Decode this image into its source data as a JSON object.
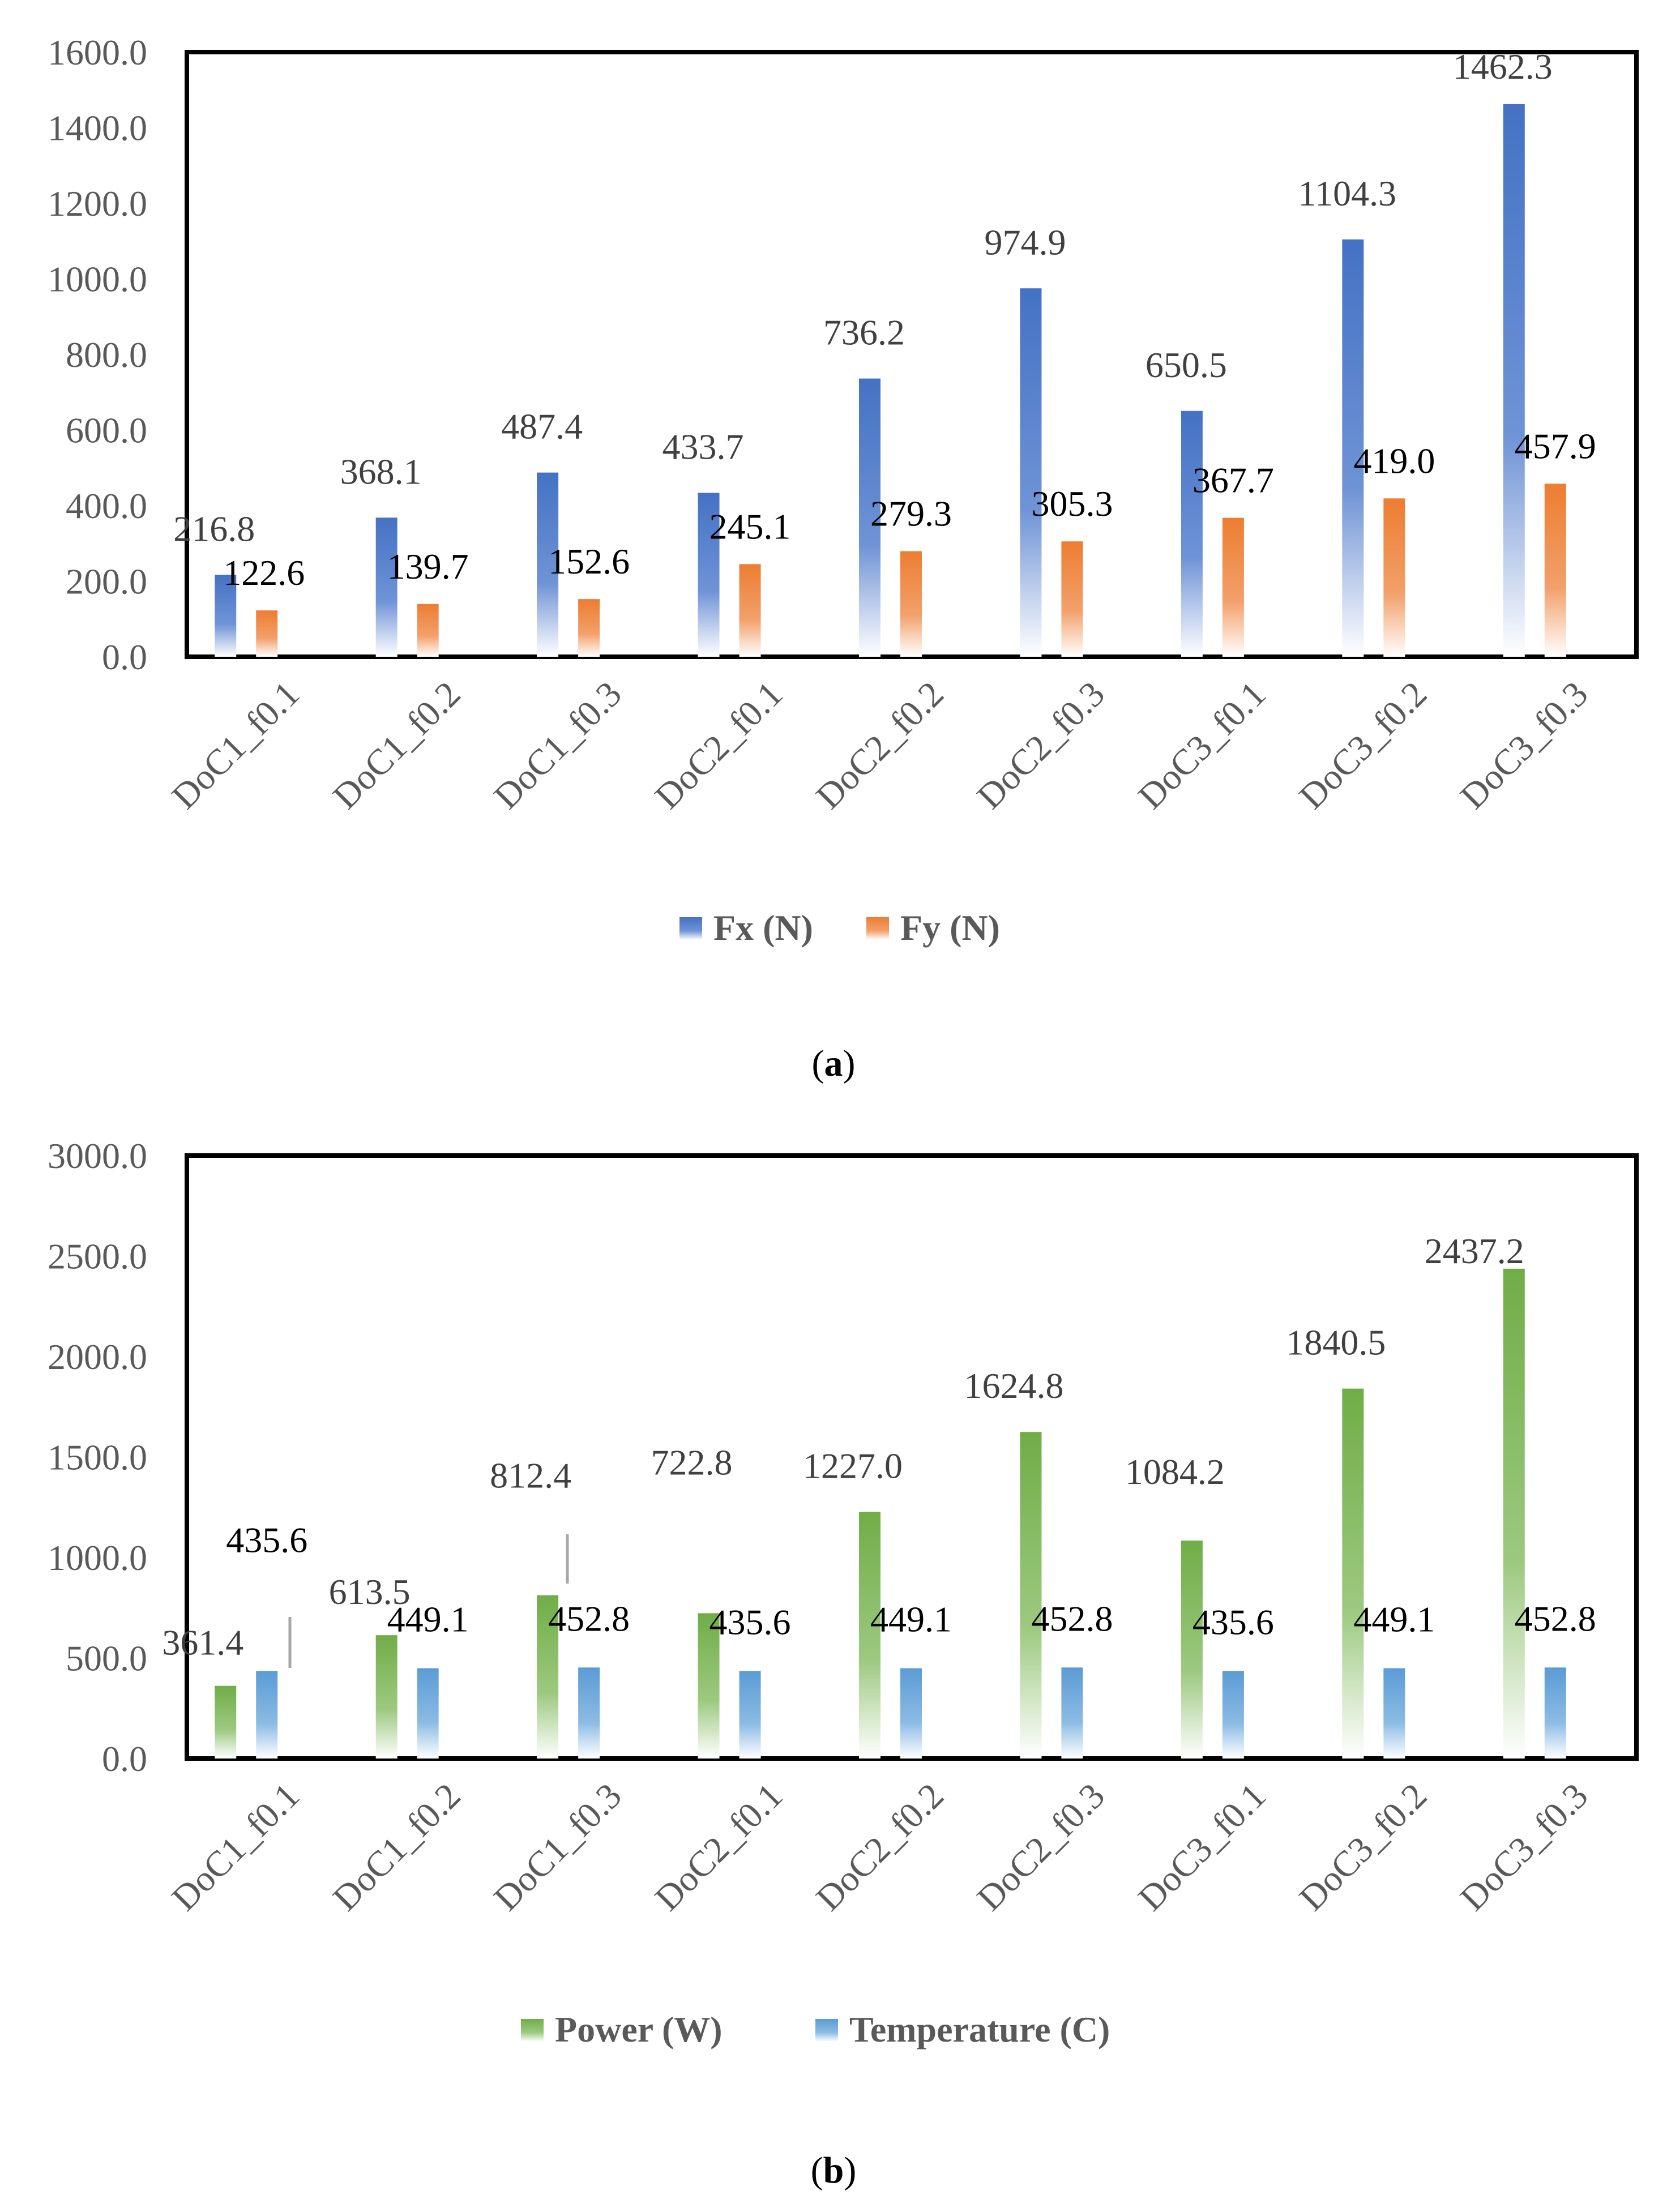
{
  "panels": [
    {
      "caption": "a",
      "chart_data": {
        "type": "bar",
        "categories": [
          "DoC1_f0.1",
          "DoC1_f0.2",
          "DoC1_f0.3",
          "DoC2_f0.1",
          "DoC2_f0.2",
          "DoC2_f0.3",
          "DoC3_f0.1",
          "DoC3_f0.2",
          "DoC3_f0.3"
        ],
        "series": [
          {
            "name": "Fx (N)",
            "color": "#4472c4",
            "values": [
              216.8,
              368.1,
              487.4,
              433.7,
              736.2,
              974.9,
              650.5,
              1104.3,
              1462.3
            ],
            "label_color": "#404040"
          },
          {
            "name": "Fy (N)",
            "color": "#ed7d31",
            "values": [
              122.6,
              139.7,
              152.6,
              245.1,
              279.3,
              305.3,
              367.7,
              419.0,
              457.9
            ],
            "label_color": "#000000"
          }
        ],
        "ylim": [
          0,
          1600
        ],
        "yticks": [
          "0.0",
          "200.0",
          "400.0",
          "600.0",
          "800.0",
          "1000.0",
          "1200.0",
          "1400.0",
          "1600.0"
        ],
        "xlabel": "",
        "ylabel": "",
        "title": "",
        "legend": "bottom",
        "grid": false
      }
    },
    {
      "caption": "b",
      "chart_data": {
        "type": "bar",
        "categories": [
          "DoC1_f0.1",
          "DoC1_f0.2",
          "DoC1_f0.3",
          "DoC2_f0.1",
          "DoC2_f0.2",
          "DoC2_f0.3",
          "DoC3_f0.1",
          "DoC3_f0.2",
          "DoC3_f0.3"
        ],
        "series": [
          {
            "name": "Power (W)",
            "color": "#70ad47",
            "values": [
              361.4,
              613.5,
              812.4,
              722.8,
              1227.0,
              1624.8,
              1084.2,
              1840.5,
              2437.2
            ],
            "label_color": "#404040"
          },
          {
            "name": "Temperature (C)",
            "color": "#5b9bd5",
            "values": [
              435.6,
              449.1,
              452.8,
              435.6,
              449.1,
              452.8,
              435.6,
              449.1,
              452.8
            ],
            "label_color": "#000000"
          }
        ],
        "ylim": [
          0,
          3000
        ],
        "yticks": [
          "0.0",
          "500.0",
          "1000.0",
          "1500.0",
          "2000.0",
          "2500.0",
          "3000.0"
        ],
        "xlabel": "",
        "ylabel": "",
        "title": "",
        "legend": "bottom",
        "grid": false
      }
    }
  ]
}
